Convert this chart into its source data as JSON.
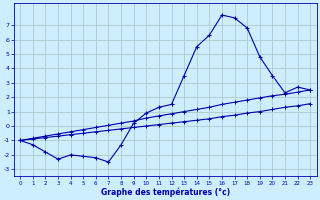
{
  "xlabel": "Graphe des températures (°c)",
  "background_color": "#cceeff",
  "grid_color": "#aacccc",
  "line_color": "#0000aa",
  "hours": [
    0,
    1,
    2,
    3,
    4,
    5,
    6,
    7,
    8,
    9,
    10,
    11,
    12,
    13,
    14,
    15,
    16,
    17,
    18,
    19,
    20,
    21,
    22,
    23
  ],
  "temp_curve": [
    -1.0,
    -1.3,
    -1.8,
    -2.3,
    -2.0,
    -2.1,
    -2.2,
    -2.5,
    -1.3,
    0.2,
    0.9,
    1.3,
    1.5,
    3.5,
    5.5,
    6.3,
    7.7,
    7.5,
    6.8,
    4.8,
    3.5,
    2.3,
    2.7,
    2.5
  ],
  "line1": [
    -1.0,
    -0.85,
    -0.7,
    -0.55,
    -0.4,
    -0.25,
    -0.1,
    0.05,
    0.2,
    0.35,
    0.55,
    0.7,
    0.85,
    1.0,
    1.15,
    1.3,
    1.5,
    1.65,
    1.8,
    1.95,
    2.1,
    2.2,
    2.35,
    2.5
  ],
  "line2": [
    -1.0,
    -0.9,
    -0.8,
    -0.7,
    -0.6,
    -0.5,
    -0.4,
    -0.3,
    -0.2,
    -0.1,
    0.0,
    0.1,
    0.2,
    0.3,
    0.4,
    0.5,
    0.65,
    0.75,
    0.9,
    1.0,
    1.15,
    1.3,
    1.4,
    1.55
  ],
  "ylim": [
    -3.5,
    8.5
  ],
  "xlim": [
    -0.5,
    23.5
  ],
  "yticks": [
    -3,
    -2,
    -1,
    0,
    1,
    2,
    3,
    4,
    5,
    6,
    7
  ],
  "xticks": [
    0,
    1,
    2,
    3,
    4,
    5,
    6,
    7,
    8,
    9,
    10,
    11,
    12,
    13,
    14,
    15,
    16,
    17,
    18,
    19,
    20,
    21,
    22,
    23
  ]
}
